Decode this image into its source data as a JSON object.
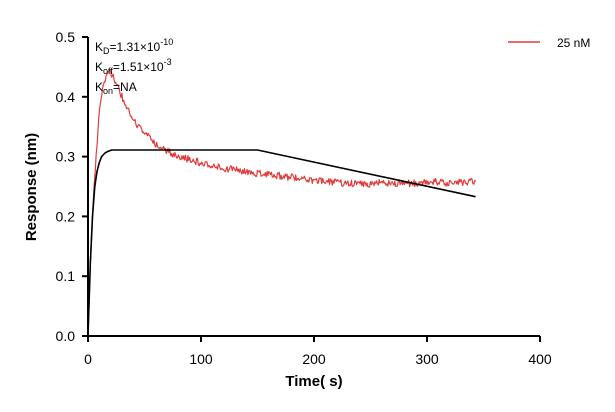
{
  "chart_data": {
    "type": "line",
    "xlabel": "Time( s)",
    "ylabel": "Response (nm)",
    "xlim": [
      0,
      400
    ],
    "ylim": [
      0,
      0.5
    ],
    "x_ticks": [
      0,
      100,
      200,
      300,
      400
    ],
    "y_ticks": [
      0.0,
      0.1,
      0.2,
      0.3,
      0.4,
      0.5
    ],
    "x_tick_labels": [
      "0",
      "100",
      "200",
      "300",
      "400"
    ],
    "y_tick_labels": [
      "0.0",
      "0.1",
      "0.2",
      "0.3",
      "0.4",
      "0.5"
    ],
    "grid": false,
    "legend_position": "top-right",
    "annotations": {
      "kd": {
        "base": "K",
        "sub": "D",
        "value": "=1.31×10",
        "exp": "-10"
      },
      "koff": {
        "base": "K",
        "sub": "off",
        "value": "=1.51×10",
        "exp": "-3"
      },
      "kon": {
        "base": "K",
        "sub": "on",
        "value": "=NA"
      }
    },
    "series": [
      {
        "name": "25 nM",
        "color": "#e03c3c",
        "x": [
          0,
          2,
          5,
          8,
          10,
          13,
          16,
          18,
          20,
          23,
          26,
          30,
          35,
          40,
          45,
          50,
          55,
          60,
          70,
          80,
          90,
          100,
          110,
          120,
          130,
          140,
          150,
          160,
          170,
          180,
          190,
          200,
          210,
          220,
          230,
          240,
          250,
          260,
          270,
          280,
          290,
          300,
          310,
          320,
          330,
          343
        ],
        "y": [
          0.0,
          0.12,
          0.24,
          0.32,
          0.37,
          0.41,
          0.43,
          0.44,
          0.44,
          0.43,
          0.42,
          0.4,
          0.38,
          0.36,
          0.35,
          0.34,
          0.33,
          0.32,
          0.31,
          0.3,
          0.295,
          0.29,
          0.285,
          0.28,
          0.278,
          0.275,
          0.272,
          0.27,
          0.268,
          0.265,
          0.262,
          0.26,
          0.258,
          0.257,
          0.255,
          0.256,
          0.255,
          0.257,
          0.256,
          0.255,
          0.256,
          0.258,
          0.257,
          0.256,
          0.257,
          0.258
        ]
      },
      {
        "name": "",
        "color": "#000000",
        "x": [
          0,
          2,
          4,
          6,
          8,
          10,
          12,
          15,
          18,
          21,
          25,
          30,
          150,
          343
        ],
        "y": [
          0.0,
          0.12,
          0.2,
          0.25,
          0.275,
          0.29,
          0.3,
          0.306,
          0.309,
          0.311,
          0.311,
          0.311,
          0.311,
          0.233
        ]
      }
    ]
  }
}
